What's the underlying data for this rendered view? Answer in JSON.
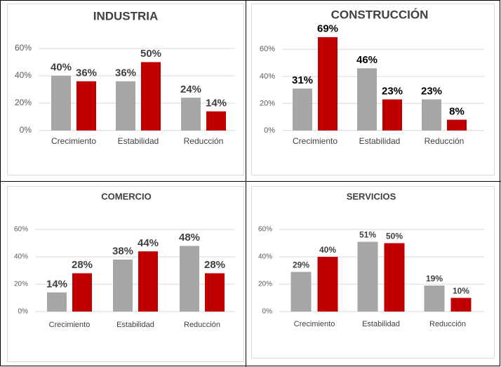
{
  "chart_data": [
    {
      "type": "bar",
      "title": "INDUSTRIA",
      "categories": [
        "Crecimiento",
        "Estabilidad",
        "Reducción"
      ],
      "series": [
        {
          "color": "#a6a6a6",
          "values": [
            40,
            36,
            24
          ],
          "value_labels": [
            "40%",
            "36%",
            "24%"
          ]
        },
        {
          "color": "#c00000",
          "values": [
            36,
            50,
            14
          ],
          "value_labels": [
            "36%",
            "50%",
            "14%"
          ]
        }
      ],
      "ylim": [
        0,
        60
      ],
      "yticks": [
        {
          "value": 0,
          "label": "0%"
        },
        {
          "value": 20,
          "label": "20%"
        },
        {
          "value": 40,
          "label": "40%"
        },
        {
          "value": 60,
          "label": "60%"
        }
      ],
      "grid": true
    },
    {
      "type": "bar",
      "title": "CONSTRUCCIÓN",
      "categories": [
        "Crecimiento",
        "Estabilidad",
        "Reducción"
      ],
      "series": [
        {
          "color": "#a6a6a6",
          "values": [
            31,
            46,
            23
          ],
          "value_labels": [
            "31%",
            "46%",
            "23%"
          ]
        },
        {
          "color": "#c00000",
          "values": [
            69,
            23,
            8
          ],
          "value_labels": [
            "69%",
            "23%",
            "8%"
          ]
        }
      ],
      "ylim": [
        0,
        70
      ],
      "yticks": [
        {
          "value": 0,
          "label": "0%"
        },
        {
          "value": 20,
          "label": "20%"
        },
        {
          "value": 40,
          "label": "40%"
        },
        {
          "value": 60,
          "label": "60%"
        }
      ],
      "grid": true
    },
    {
      "type": "bar",
      "title": "COMERCIO",
      "categories": [
        "Crecimiento",
        "Estabilidad",
        "Reducción"
      ],
      "series": [
        {
          "color": "#a6a6a6",
          "values": [
            14,
            38,
            48
          ],
          "value_labels": [
            "14%",
            "38%",
            "48%"
          ]
        },
        {
          "color": "#c00000",
          "values": [
            28,
            44,
            28
          ],
          "value_labels": [
            "28%",
            "44%",
            "28%"
          ]
        }
      ],
      "ylim": [
        0,
        60
      ],
      "yticks": [
        {
          "value": 0,
          "label": "0%"
        },
        {
          "value": 20,
          "label": "20%"
        },
        {
          "value": 40,
          "label": "40%"
        },
        {
          "value": 60,
          "label": "60%"
        }
      ],
      "grid": true
    },
    {
      "type": "bar",
      "title": "SERVICIOS",
      "categories": [
        "Crecimiento",
        "Estabilidad",
        "Reducción"
      ],
      "series": [
        {
          "color": "#a6a6a6",
          "values": [
            29,
            51,
            19
          ],
          "value_labels": [
            "29%",
            "51%",
            "19%"
          ]
        },
        {
          "color": "#c00000",
          "values": [
            40,
            50,
            10
          ],
          "value_labels": [
            "40%",
            "50%",
            "10%"
          ]
        }
      ],
      "ylim": [
        0,
        60
      ],
      "yticks": [
        {
          "value": 0,
          "label": "0%"
        },
        {
          "value": 20,
          "label": "20%"
        },
        {
          "value": 40,
          "label": "40%"
        },
        {
          "value": 60,
          "label": "60%"
        }
      ],
      "grid": true
    }
  ]
}
